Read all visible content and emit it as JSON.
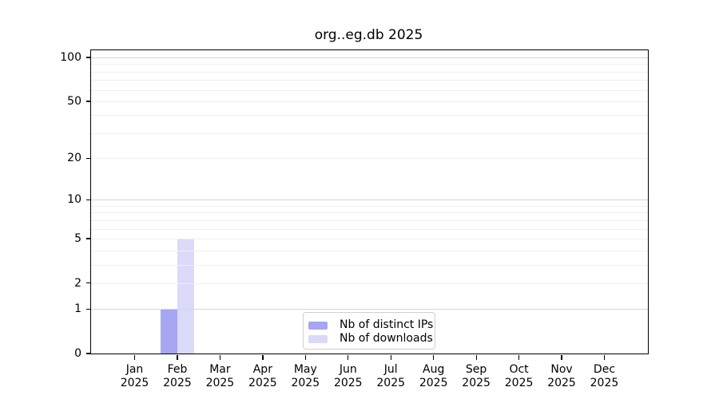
{
  "title": "org..eg.db 2025",
  "year": "2025",
  "chart_data": {
    "type": "bar",
    "title": "org..eg.db 2025",
    "categories": [
      "Jan",
      "Feb",
      "Mar",
      "Apr",
      "May",
      "Jun",
      "Jul",
      "Aug",
      "Sep",
      "Oct",
      "Nov",
      "Dec"
    ],
    "xtick_year": "2025",
    "series": [
      {
        "name": "Nb of distinct IPs",
        "color": "#a6a6f2",
        "values": [
          0,
          1,
          0,
          0,
          0,
          0,
          0,
          0,
          0,
          0,
          0,
          0
        ]
      },
      {
        "name": "Nb of downloads",
        "color": "#dadaf8",
        "values": [
          0,
          5,
          0,
          0,
          0,
          0,
          0,
          0,
          0,
          0,
          0,
          0
        ]
      }
    ],
    "yscale": "log1p",
    "ylim": [
      0,
      112
    ],
    "ytick_values": [
      0,
      1,
      2,
      5,
      10,
      20,
      50,
      100
    ],
    "grid_major_values": [
      1,
      10,
      100
    ],
    "grid_minor_values": [
      2,
      3,
      4,
      5,
      6,
      7,
      8,
      9,
      20,
      30,
      40,
      50,
      60,
      70,
      80,
      90
    ],
    "grid": true,
    "legend_position": "bottom-center",
    "xlabel": "",
    "ylabel": ""
  },
  "legend": {
    "items": [
      {
        "label": "Nb of distinct IPs"
      },
      {
        "label": "Nb of downloads"
      }
    ]
  },
  "colors": {
    "distinct_ips_bar": "#a6a6f2",
    "downloads_bar": "#dadaf8",
    "grid_minor": "#f0f0f0",
    "grid_major": "#d5d5d5",
    "axis": "#000000",
    "legend_border": "#cfcfcf",
    "background": "#ffffff"
  }
}
